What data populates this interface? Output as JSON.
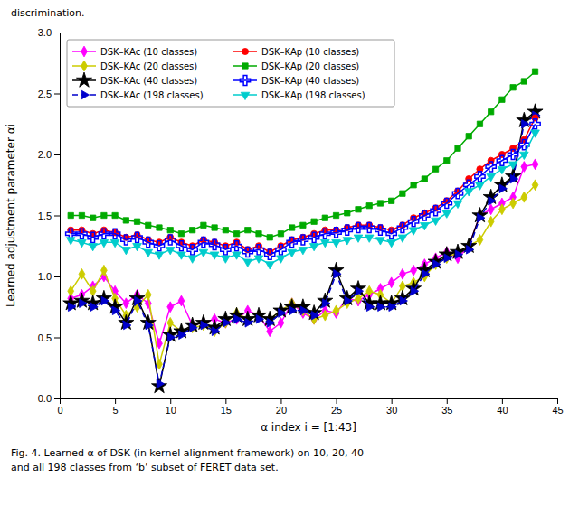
{
  "chart_data": {
    "type": "line",
    "xlabel": "α index i = [1:43]",
    "ylabel": "Learned adjustment parameter αi",
    "annotations": [
      "discrimination.",
      "Fig. 4.   Learned α of DSK (in kernel alignment framework) on 10, 20, 40",
      "and all 198 classes from ‘b’ subset of FERET data set."
    ],
    "xlim": [
      0,
      45
    ],
    "ylim": [
      0,
      3
    ],
    "xticks": [
      0,
      5,
      10,
      15,
      20,
      25,
      30,
      35,
      40,
      45
    ],
    "yticks": [
      {
        "value": 0,
        "label": "0.0"
      },
      0.5,
      {
        "value": 1,
        "label": "1.0"
      },
      1.5,
      {
        "value": 2,
        "label": "2.0"
      },
      2.5,
      {
        "value": 3,
        "label": "3.0"
      }
    ],
    "grid": false,
    "legend": "upper left",
    "x": [
      1,
      2,
      3,
      4,
      5,
      6,
      7,
      8,
      9,
      10,
      11,
      12,
      13,
      14,
      15,
      16,
      17,
      18,
      19,
      20,
      21,
      22,
      23,
      24,
      25,
      26,
      27,
      28,
      29,
      30,
      31,
      32,
      33,
      34,
      35,
      36,
      37,
      38,
      39,
      40,
      41,
      42,
      43
    ],
    "series": [
      {
        "name": "DSK–KAc (10 classes)",
        "color": "#FF00FF",
        "marker": "diamond",
        "line_style": "solid",
        "values": [
          0.82,
          0.85,
          0.92,
          1.0,
          0.88,
          0.78,
          0.85,
          0.78,
          0.45,
          0.75,
          0.8,
          0.6,
          0.62,
          0.65,
          0.62,
          0.65,
          0.72,
          0.68,
          0.55,
          0.62,
          0.78,
          0.7,
          0.65,
          0.72,
          0.7,
          0.82,
          0.8,
          0.85,
          0.9,
          0.95,
          1.02,
          1.05,
          1.1,
          1.15,
          1.2,
          1.15,
          1.25,
          1.5,
          1.55,
          1.6,
          1.65,
          1.9,
          1.92
        ]
      },
      {
        "name": "DSK–KAc (20 classes)",
        "color": "#CCCC00",
        "marker": "diamond",
        "line_style": "solid",
        "values": [
          0.88,
          1.02,
          0.88,
          1.05,
          0.82,
          0.68,
          0.75,
          0.85,
          0.28,
          0.62,
          0.55,
          0.58,
          0.6,
          0.55,
          0.62,
          0.7,
          0.65,
          0.68,
          0.65,
          0.72,
          0.78,
          0.72,
          0.65,
          0.68,
          0.72,
          0.78,
          0.82,
          0.88,
          0.85,
          0.78,
          0.92,
          0.95,
          1.0,
          1.1,
          1.15,
          1.2,
          1.25,
          1.3,
          1.45,
          1.55,
          1.6,
          1.65,
          1.75
        ]
      },
      {
        "name": "DSK–KAc (40 classes)",
        "color": "#000000",
        "marker": "star",
        "line_style": "solid",
        "values": [
          0.78,
          0.8,
          0.78,
          0.82,
          0.75,
          0.62,
          0.82,
          0.62,
          0.1,
          0.52,
          0.55,
          0.6,
          0.62,
          0.58,
          0.65,
          0.68,
          0.65,
          0.68,
          0.65,
          0.72,
          0.75,
          0.75,
          0.7,
          0.8,
          1.05,
          0.82,
          0.9,
          0.78,
          0.78,
          0.78,
          0.82,
          0.9,
          1.05,
          1.12,
          1.18,
          1.2,
          1.25,
          1.5,
          1.65,
          1.75,
          1.82,
          2.28,
          2.35
        ]
      },
      {
        "name": "DSK–KAc (198 classes)",
        "color": "#0000CC",
        "marker": "triangle-right",
        "line_style": "dashed",
        "values": [
          0.75,
          0.78,
          0.75,
          0.8,
          0.72,
          0.6,
          0.8,
          0.6,
          0.12,
          0.5,
          0.52,
          0.58,
          0.6,
          0.55,
          0.62,
          0.65,
          0.62,
          0.65,
          0.62,
          0.7,
          0.72,
          0.72,
          0.68,
          0.78,
          1.02,
          0.8,
          0.88,
          0.75,
          0.75,
          0.75,
          0.8,
          0.88,
          1.02,
          1.1,
          1.15,
          1.18,
          1.22,
          1.48,
          1.62,
          1.72,
          1.8,
          2.25,
          2.32
        ]
      },
      {
        "name": "DSK–KAp (10 classes)",
        "color": "#FF0000",
        "marker": "circle",
        "line_style": "solid",
        "values": [
          1.38,
          1.38,
          1.35,
          1.38,
          1.36,
          1.32,
          1.34,
          1.3,
          1.28,
          1.32,
          1.28,
          1.25,
          1.3,
          1.28,
          1.25,
          1.28,
          1.22,
          1.25,
          1.2,
          1.25,
          1.3,
          1.32,
          1.35,
          1.38,
          1.38,
          1.4,
          1.42,
          1.42,
          1.4,
          1.38,
          1.42,
          1.48,
          1.52,
          1.56,
          1.62,
          1.7,
          1.8,
          1.88,
          1.95,
          2.0,
          2.05,
          2.12,
          2.3
        ]
      },
      {
        "name": "DSK–KAp (20 classes)",
        "color": "#00AA00",
        "marker": "square",
        "line_style": "solid",
        "values": [
          1.5,
          1.5,
          1.48,
          1.5,
          1.5,
          1.46,
          1.45,
          1.42,
          1.4,
          1.38,
          1.35,
          1.38,
          1.42,
          1.4,
          1.38,
          1.35,
          1.38,
          1.35,
          1.32,
          1.35,
          1.4,
          1.42,
          1.45,
          1.48,
          1.5,
          1.52,
          1.55,
          1.58,
          1.6,
          1.62,
          1.68,
          1.75,
          1.8,
          1.88,
          1.95,
          2.05,
          2.15,
          2.25,
          2.35,
          2.45,
          2.55,
          2.6,
          2.68
        ]
      },
      {
        "name": "DSK–KAp (40 classes)",
        "color": "#0000FF",
        "marker": "plus",
        "line_style": "solid",
        "values": [
          1.35,
          1.35,
          1.32,
          1.35,
          1.35,
          1.3,
          1.32,
          1.28,
          1.25,
          1.3,
          1.25,
          1.22,
          1.28,
          1.26,
          1.22,
          1.25,
          1.2,
          1.22,
          1.18,
          1.22,
          1.28,
          1.3,
          1.32,
          1.35,
          1.36,
          1.38,
          1.4,
          1.4,
          1.38,
          1.35,
          1.4,
          1.45,
          1.5,
          1.54,
          1.6,
          1.68,
          1.75,
          1.82,
          1.9,
          1.95,
          2.0,
          2.08,
          2.25
        ]
      },
      {
        "name": "DSK–KAp (198 classes)",
        "color": "#00CCCC",
        "marker": "triangle-down",
        "line_style": "solid",
        "values": [
          1.3,
          1.28,
          1.25,
          1.28,
          1.28,
          1.22,
          1.25,
          1.2,
          1.18,
          1.22,
          1.18,
          1.15,
          1.2,
          1.18,
          1.15,
          1.18,
          1.12,
          1.15,
          1.1,
          1.15,
          1.2,
          1.22,
          1.25,
          1.28,
          1.28,
          1.3,
          1.32,
          1.32,
          1.3,
          1.28,
          1.32,
          1.38,
          1.42,
          1.46,
          1.52,
          1.6,
          1.7,
          1.75,
          1.82,
          1.88,
          1.92,
          2.0,
          2.18
        ]
      }
    ]
  }
}
